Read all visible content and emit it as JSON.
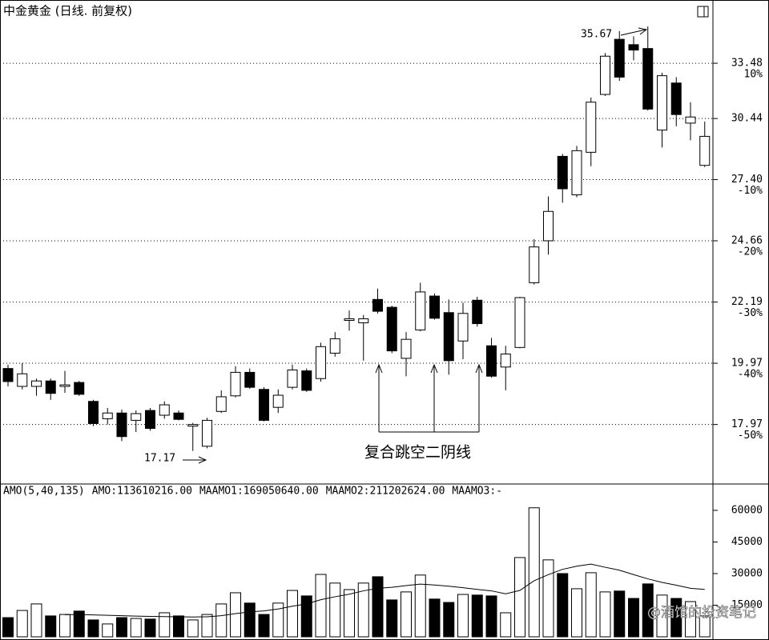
{
  "title": "中金黄金 (日线. 前复权)",
  "watermark": "@酒馆的投资笔记",
  "chart_data": [
    {
      "type": "candlestick",
      "log_scale": true,
      "grid": true,
      "up_color": "#ffffff",
      "down_color": "#000000",
      "ylim": [
        16.22,
        37.18
      ],
      "yticks": [
        33.48,
        30.44,
        {
          "value": 27.4,
          "label": "27.40"
        },
        24.66,
        22.19,
        19.97,
        17.97
      ],
      "pct_ticks": [
        {
          "value": 33.48,
          "label": "10%"
        },
        {
          "value": 27.4,
          "label": "-10%"
        },
        {
          "value": 24.66,
          "label": "-20%"
        },
        {
          "value": 22.19,
          "label": "-30%"
        },
        {
          "value": 19.97,
          "label": "-40%"
        },
        {
          "value": 17.97,
          "label": "-50%"
        }
      ],
      "annotation": "复合跳空二阴线",
      "ohlc": [
        [
          19.79,
          19.92,
          19.19,
          19.35
        ],
        [
          19.19,
          19.97,
          19.09,
          19.61
        ],
        [
          19.19,
          19.45,
          18.88,
          19.37
        ],
        [
          19.37,
          19.45,
          18.75,
          18.96
        ],
        [
          19.19,
          19.71,
          18.98,
          19.24
        ],
        [
          19.32,
          19.37,
          18.88,
          18.93
        ],
        [
          18.7,
          18.75,
          17.92,
          18.0
        ],
        [
          18.15,
          18.49,
          17.97,
          18.33
        ],
        [
          18.33,
          18.44,
          17.46,
          17.6
        ],
        [
          18.1,
          18.41,
          17.74,
          18.31
        ],
        [
          18.41,
          18.49,
          17.78,
          17.85
        ],
        [
          18.26,
          18.7,
          18.15,
          18.59
        ],
        [
          18.33,
          18.41,
          18.1,
          18.13
        ],
        [
          17.92,
          18.02,
          17.17,
          17.97
        ],
        [
          17.31,
          18.18,
          17.25,
          18.1
        ],
        [
          18.38,
          19.06,
          18.33,
          18.85
        ],
        [
          18.88,
          19.87,
          18.83,
          19.66
        ],
        [
          19.66,
          19.79,
          19.11,
          19.16
        ],
        [
          19.09,
          19.16,
          18.07,
          18.1
        ],
        [
          18.51,
          19.09,
          18.33,
          18.9
        ],
        [
          19.16,
          19.92,
          19.09,
          19.74
        ],
        [
          19.71,
          19.79,
          19.01,
          19.06
        ],
        [
          19.45,
          20.69,
          19.35,
          20.55
        ],
        [
          20.32,
          21.07,
          20.2,
          20.83
        ],
        [
          21.5,
          21.87,
          21.12,
          21.56
        ],
        [
          21.41,
          21.7,
          20.06,
          21.56
        ],
        [
          22.29,
          22.71,
          21.76,
          21.84
        ],
        [
          21.99,
          22.05,
          20.32,
          20.4
        ],
        [
          20.14,
          21.07,
          19.53,
          20.81
        ],
        [
          21.15,
          22.94,
          21.1,
          22.58
        ],
        [
          22.42,
          22.52,
          21.53,
          21.58
        ],
        [
          21.79,
          22.29,
          19.58,
          20.06
        ],
        [
          20.75,
          22.16,
          20.11,
          21.76
        ],
        [
          22.26,
          22.39,
          21.27,
          21.38
        ],
        [
          20.58,
          20.86,
          19.48,
          19.53
        ],
        [
          19.84,
          20.58,
          19.06,
          20.29
        ],
        [
          20.52,
          22.39,
          20.49,
          22.36
        ],
        [
          22.94,
          24.73,
          22.87,
          24.4
        ],
        [
          24.66,
          26.62,
          24.08,
          25.94
        ],
        [
          28.52,
          28.64,
          26.33,
          26.97
        ],
        [
          26.69,
          29.04,
          26.58,
          28.8
        ],
        [
          28.72,
          31.56,
          28.04,
          31.31
        ],
        [
          31.73,
          34.07,
          31.65,
          33.89
        ],
        [
          34.89,
          35.39,
          32.48,
          32.69
        ],
        [
          34.57,
          35.07,
          33.65,
          34.25
        ],
        [
          34.34,
          35.67,
          30.86,
          30.94
        ],
        [
          29.84,
          32.94,
          28.96,
          32.77
        ],
        [
          32.36,
          32.69,
          30.04,
          30.65
        ],
        [
          30.2,
          31.31,
          29.32,
          30.52
        ],
        [
          28.08,
          30.28,
          28.0,
          29.52
        ]
      ]
    },
    {
      "type": "bar",
      "header": [
        "AMO(5,40,135)",
        "AMO:113610216.00",
        "MAAMO1:169050640.00",
        "MAAMO2:211202624.00",
        "MAAMO3:-"
      ],
      "ylim": [
        0,
        72500
      ],
      "yticks": [
        15000,
        30000,
        45000,
        60000
      ],
      "values": [
        9100,
        12500,
        15600,
        9900,
        10600,
        12200,
        8000,
        6100,
        9100,
        8700,
        8400,
        11400,
        9900,
        8000,
        10600,
        15600,
        20900,
        16000,
        10600,
        16000,
        22000,
        19400,
        29600,
        25500,
        22400,
        25500,
        28500,
        17500,
        21300,
        29300,
        17900,
        16300,
        20100,
        19800,
        19400,
        11400,
        37600,
        61200,
        36500,
        30000,
        22800,
        30400,
        21300,
        21700,
        18200,
        25100,
        19800,
        18200,
        16700,
        9900
      ],
      "ma_values": [
        null,
        null,
        null,
        null,
        10500,
        10600,
        10400,
        10200,
        10000,
        9800,
        9700,
        9600,
        9500,
        9400,
        9500,
        10000,
        11000,
        11800,
        12300,
        13200,
        14500,
        15600,
        17600,
        19000,
        20200,
        21800,
        23000,
        23500,
        24300,
        25000,
        24600,
        24000,
        23300,
        22500,
        21800,
        20400,
        22000,
        26600,
        29500,
        32000,
        33500,
        34500,
        33000,
        31600,
        29500,
        27500,
        25800,
        24500,
        23000,
        22500
      ]
    }
  ]
}
